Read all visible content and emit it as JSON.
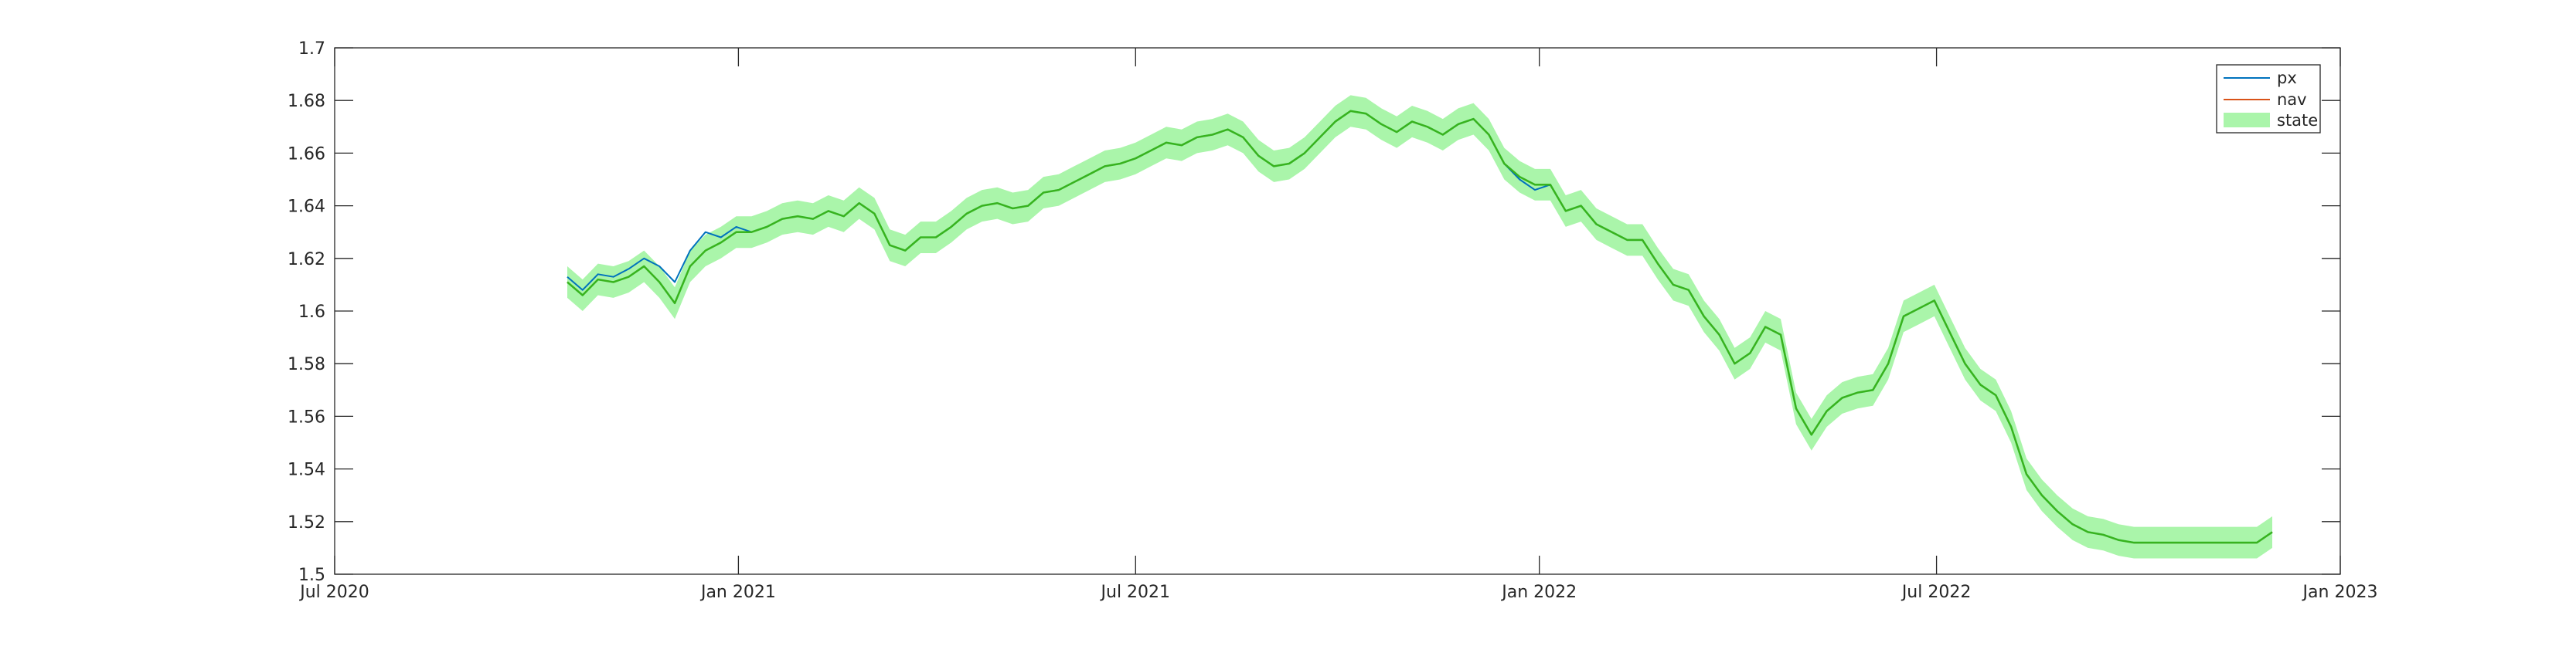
{
  "chart_data": {
    "type": "line",
    "title": "",
    "xlabel": "",
    "ylabel": "",
    "xlim": [
      "2020-07-01",
      "2023-01-01"
    ],
    "ylim": [
      1.5,
      1.7
    ],
    "grid": false,
    "legend_position": "top-right",
    "x_ticks": [
      {
        "date": "2020-07-01",
        "label": "Jul 2020"
      },
      {
        "date": "2021-01-01",
        "label": "Jan 2021"
      },
      {
        "date": "2021-07-01",
        "label": "Jul 2021"
      },
      {
        "date": "2022-01-01",
        "label": "Jan 2022"
      },
      {
        "date": "2022-07-01",
        "label": "Jul 2022"
      },
      {
        "date": "2023-01-01",
        "label": "Jan 2023"
      }
    ],
    "y_ticks": [
      {
        "value": 1.5,
        "label": "1.5"
      },
      {
        "value": 1.52,
        "label": "1.52"
      },
      {
        "value": 1.54,
        "label": "1.54"
      },
      {
        "value": 1.56,
        "label": "1.56"
      },
      {
        "value": 1.58,
        "label": "1.58"
      },
      {
        "value": 1.6,
        "label": "1.6"
      },
      {
        "value": 1.62,
        "label": "1.62"
      },
      {
        "value": 1.64,
        "label": "1.64"
      },
      {
        "value": 1.66,
        "label": "1.66"
      },
      {
        "value": 1.68,
        "label": "1.68"
      },
      {
        "value": 1.7,
        "label": "1.7"
      }
    ],
    "x": [
      "2020-10-15",
      "2020-10-22",
      "2020-10-29",
      "2020-11-05",
      "2020-11-12",
      "2020-11-19",
      "2020-11-26",
      "2020-12-03",
      "2020-12-10",
      "2020-12-17",
      "2020-12-24",
      "2020-12-31",
      "2021-01-07",
      "2021-01-14",
      "2021-01-21",
      "2021-01-28",
      "2021-02-04",
      "2021-02-11",
      "2021-02-18",
      "2021-02-25",
      "2021-03-04",
      "2021-03-11",
      "2021-03-18",
      "2021-03-25",
      "2021-04-01",
      "2021-04-08",
      "2021-04-15",
      "2021-04-22",
      "2021-04-29",
      "2021-05-06",
      "2021-05-13",
      "2021-05-20",
      "2021-05-27",
      "2021-06-03",
      "2021-06-10",
      "2021-06-17",
      "2021-06-24",
      "2021-07-01",
      "2021-07-08",
      "2021-07-15",
      "2021-07-22",
      "2021-07-29",
      "2021-08-05",
      "2021-08-12",
      "2021-08-19",
      "2021-08-26",
      "2021-09-02",
      "2021-09-09",
      "2021-09-16",
      "2021-09-23",
      "2021-09-30",
      "2021-10-07",
      "2021-10-14",
      "2021-10-21",
      "2021-10-28",
      "2021-11-04",
      "2021-11-11",
      "2021-11-18",
      "2021-11-25",
      "2021-12-02",
      "2021-12-09",
      "2021-12-16",
      "2021-12-23",
      "2021-12-30",
      "2022-01-06",
      "2022-01-13",
      "2022-01-20",
      "2022-01-27",
      "2022-02-03",
      "2022-02-10",
      "2022-02-17",
      "2022-02-24",
      "2022-03-03",
      "2022-03-10",
      "2022-03-17",
      "2022-03-24",
      "2022-03-31",
      "2022-04-07",
      "2022-04-14",
      "2022-04-21",
      "2022-04-28",
      "2022-05-05",
      "2022-05-12",
      "2022-05-19",
      "2022-05-26",
      "2022-06-02",
      "2022-06-09",
      "2022-06-16",
      "2022-06-23",
      "2022-06-30",
      "2022-07-07",
      "2022-07-14",
      "2022-07-21",
      "2022-07-28",
      "2022-08-04",
      "2022-08-11",
      "2022-08-18",
      "2022-08-25",
      "2022-09-01",
      "2022-09-08",
      "2022-09-15",
      "2022-09-22",
      "2022-09-29",
      "2022-10-06",
      "2022-10-13",
      "2022-10-20",
      "2022-10-27",
      "2022-11-03",
      "2022-11-10",
      "2022-11-17",
      "2022-11-24",
      "2022-12-01"
    ],
    "series": [
      {
        "name": "px",
        "color": "#0072bd",
        "values": [
          1.613,
          1.608,
          1.614,
          1.613,
          1.616,
          1.62,
          1.617,
          1.611,
          1.623,
          1.63,
          1.628,
          1.632,
          1.63,
          1.632,
          1.635,
          1.636,
          1.635,
          1.638,
          1.636,
          1.641,
          1.637,
          1.625,
          1.623,
          1.628,
          1.628,
          1.632,
          1.637,
          1.64,
          1.641,
          1.639,
          1.64,
          1.645,
          1.646,
          1.649,
          1.652,
          1.655,
          1.656,
          1.658,
          1.661,
          1.664,
          1.663,
          1.666,
          1.667,
          1.669,
          1.666,
          1.659,
          1.655,
          1.656,
          1.66,
          1.666,
          1.672,
          1.676,
          1.675,
          1.671,
          1.668,
          1.672,
          1.67,
          1.667,
          1.671,
          1.673,
          1.667,
          1.656,
          1.65,
          1.646,
          1.648,
          1.638,
          1.64,
          1.633,
          1.63,
          1.627,
          1.627,
          1.618,
          1.61,
          1.608,
          1.598,
          1.591,
          1.58,
          1.584,
          1.594,
          1.591,
          1.563,
          1.553,
          1.562,
          1.567,
          1.569,
          1.57,
          1.58,
          1.598,
          1.601,
          1.604,
          1.592,
          1.58,
          1.572,
          1.568,
          1.556,
          1.538,
          1.53,
          1.524,
          1.519,
          1.516,
          1.515,
          1.513,
          1.512,
          1.512,
          1.512,
          1.512,
          1.512,
          1.512,
          1.512,
          1.512,
          1.512,
          1.516
        ]
      },
      {
        "name": "nav",
        "color": "#d95319",
        "values": [
          1.611,
          1.606,
          1.612,
          1.611,
          1.613,
          1.617,
          1.611,
          1.603,
          1.617,
          1.623,
          1.626,
          1.63,
          1.63,
          1.632,
          1.635,
          1.636,
          1.635,
          1.638,
          1.636,
          1.641,
          1.637,
          1.625,
          1.623,
          1.628,
          1.628,
          1.632,
          1.637,
          1.64,
          1.641,
          1.639,
          1.64,
          1.645,
          1.646,
          1.649,
          1.652,
          1.655,
          1.656,
          1.658,
          1.661,
          1.664,
          1.663,
          1.666,
          1.667,
          1.669,
          1.666,
          1.659,
          1.655,
          1.656,
          1.66,
          1.666,
          1.672,
          1.676,
          1.675,
          1.671,
          1.668,
          1.672,
          1.67,
          1.667,
          1.671,
          1.673,
          1.667,
          1.656,
          1.651,
          1.648,
          1.648,
          1.638,
          1.64,
          1.633,
          1.63,
          1.627,
          1.627,
          1.618,
          1.61,
          1.608,
          1.598,
          1.591,
          1.58,
          1.584,
          1.594,
          1.591,
          1.563,
          1.553,
          1.562,
          1.567,
          1.569,
          1.57,
          1.58,
          1.598,
          1.601,
          1.604,
          1.592,
          1.58,
          1.572,
          1.568,
          1.556,
          1.538,
          1.53,
          1.524,
          1.519,
          1.516,
          1.515,
          1.513,
          1.512,
          1.512,
          1.512,
          1.512,
          1.512,
          1.512,
          1.512,
          1.512,
          1.512,
          1.516
        ]
      }
    ],
    "band": {
      "name": "state",
      "color": "#aaf5aa",
      "line_color": "#1fc21f",
      "half_width": 0.006
    }
  }
}
